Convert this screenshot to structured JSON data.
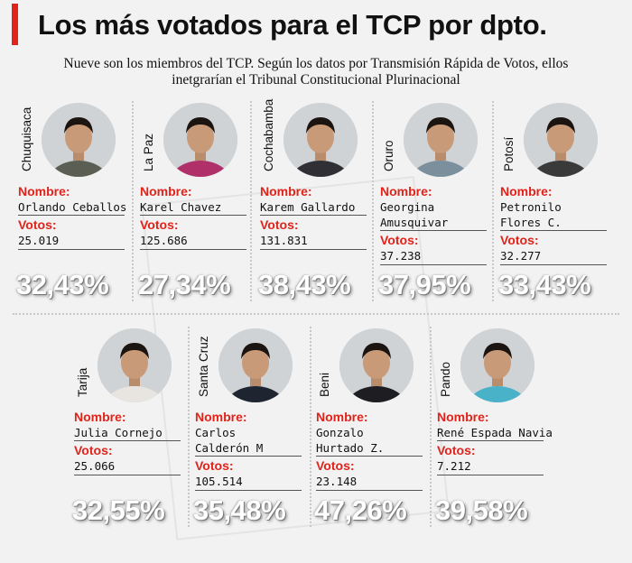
{
  "header": {
    "title": "Los más votados para el TCP por dpto.",
    "subtitle_line1": "Nueve son los miembros del TCP. Según los datos por Transmisión Rápida de Votos, ellos",
    "subtitle_line2": "inetgrarían el Tribunal Constitucional Plurinacional"
  },
  "labels": {
    "nombre": "Nombre:",
    "votos": "Votos:"
  },
  "colors": {
    "accent": "#e2231a",
    "background": "#f2f2f2"
  },
  "candidates": [
    {
      "department": "Chuquisaca",
      "name_line1": "Orlando Ceballos",
      "name_line2": "",
      "votes": "25.019",
      "percent": "32,43%"
    },
    {
      "department": "La Paz",
      "name_line1": "Karel Chavez",
      "name_line2": "",
      "votes": "125.686",
      "percent": "27,34%"
    },
    {
      "department": "Cochabamba",
      "name_line1": "Karem Gallardo",
      "name_line2": "",
      "votes": "131.831",
      "percent": "38,43%"
    },
    {
      "department": "Oruro",
      "name_line1": "Georgina",
      "name_line2": "Amusquivar",
      "votes": "37.238",
      "percent": "37,95%"
    },
    {
      "department": "Potosí",
      "name_line1": "Petronilo",
      "name_line2": "Flores C.",
      "votes": "32.277",
      "percent": "33,43%"
    },
    {
      "department": "Tarija",
      "name_line1": "Julia Cornejo",
      "name_line2": "",
      "votes": "25.066",
      "percent": "32,55%"
    },
    {
      "department": "Santa Cruz",
      "name_line1": "Carlos",
      "name_line2": "Calderón M",
      "votes": "105.514",
      "percent": "35,48%"
    },
    {
      "department": "Beni",
      "name_line1": "Gonzalo",
      "name_line2": "Hurtado Z.",
      "votes": "23.148",
      "percent": "47,26%"
    },
    {
      "department": "Pando",
      "name_line1": "René Espada Navia",
      "name_line2": "",
      "votes": "7.212",
      "percent": "39,58%"
    }
  ]
}
